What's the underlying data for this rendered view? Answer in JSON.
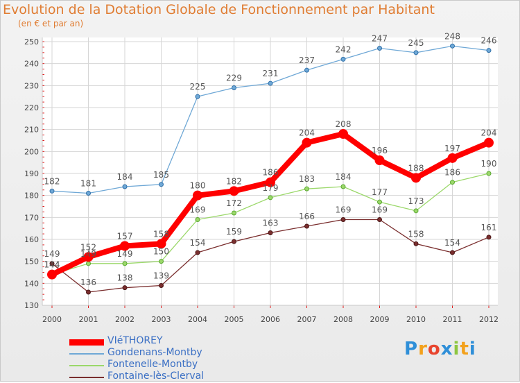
{
  "header": {
    "title": "Evolution de la Dotation Globale de Fonctionnement par Habitant",
    "subtitle": "(en € et par an)"
  },
  "brand": {
    "letters": [
      "P",
      "r",
      "o",
      "x",
      "i",
      "t",
      "i"
    ],
    "colors": [
      "#2f8fd8",
      "#f3a11c",
      "#e8442e",
      "#2f8fd8",
      "#8dc641",
      "#f3a11c",
      "#2f8fd8"
    ]
  },
  "chart_data": {
    "type": "line",
    "x": [
      "2000",
      "2001",
      "2002",
      "2003",
      "2004",
      "2005",
      "2006",
      "2007",
      "2008",
      "2009",
      "2010",
      "2011",
      "2012"
    ],
    "ylim": [
      130,
      250
    ],
    "yticks": [
      "130",
      "140",
      "150",
      "160",
      "170",
      "180",
      "190",
      "200",
      "210",
      "220",
      "230",
      "240",
      "250"
    ],
    "grid": true,
    "legend_position": "bottom-left",
    "series": [
      {
        "name": "Gondenans-Montby",
        "color": "#6fa8d6",
        "values": [
          182,
          181,
          184,
          185,
          225,
          229,
          231,
          237,
          242,
          247,
          245,
          248,
          246
        ]
      },
      {
        "name": "Fontenelle-Montby",
        "color": "#9bd86a",
        "values": [
          144,
          149,
          149,
          150,
          169,
          172,
          179,
          183,
          184,
          177,
          173,
          186,
          190
        ]
      },
      {
        "name": "Fontaine-lès-Clerval",
        "color": "#7a2e2e",
        "values": [
          149,
          136,
          138,
          139,
          154,
          159,
          163,
          166,
          169,
          169,
          158,
          154,
          161
        ]
      },
      {
        "name": "VIéTHOREY",
        "color": "#ff0000",
        "values": [
          144,
          152,
          157,
          158,
          180,
          182,
          186,
          204,
          208,
          196,
          188,
          197,
          204
        ]
      }
    ],
    "legend_order": [
      3,
      0,
      1,
      2
    ]
  }
}
